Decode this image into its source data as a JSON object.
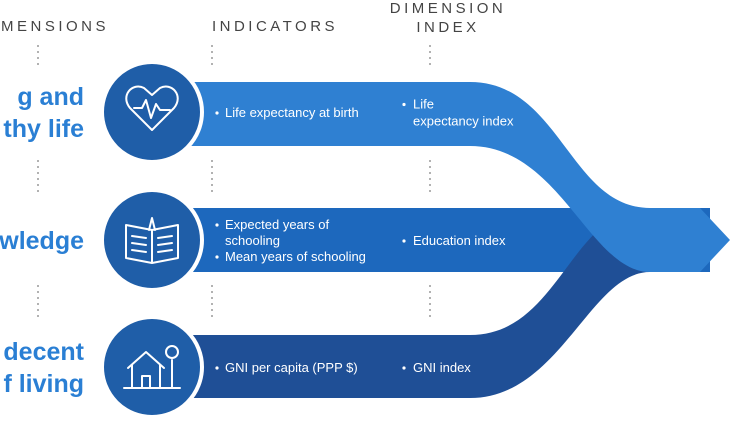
{
  "header": {
    "dimensions": "MENSIONS",
    "indicators": "INDICATORS",
    "index": [
      "DIMENSION",
      "INDEX"
    ]
  },
  "rows": [
    {
      "dimension": [
        "g and",
        "thy life"
      ],
      "indicators": [
        [
          "Life expectancy at birth"
        ]
      ],
      "index": [
        "Life",
        "expectancy index"
      ]
    },
    {
      "dimension": [
        "wledge"
      ],
      "indicators": [
        [
          "Expected years of",
          "schooling"
        ],
        [
          "Mean years of schooling"
        ]
      ],
      "index": [
        "Education index"
      ]
    },
    {
      "dimension": [
        "decent",
        "f living"
      ],
      "indicators": [
        [
          "GNI per capita (PPP $)"
        ]
      ],
      "index": [
        "GNI index"
      ]
    }
  ]
}
